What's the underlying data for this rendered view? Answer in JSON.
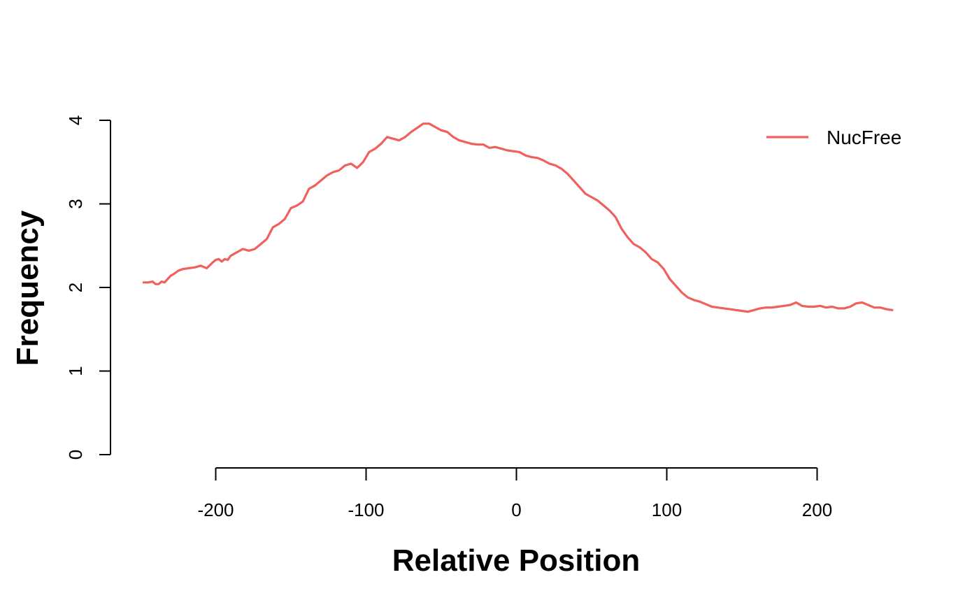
{
  "chart_data": {
    "type": "line",
    "title": "",
    "xlabel": "Relative Position",
    "ylabel": "Frequency",
    "xlim": [
      -250,
      250
    ],
    "ylim": [
      0,
      4
    ],
    "x_ticks": [
      -200,
      -100,
      0,
      100,
      200
    ],
    "x_tick_labels": [
      "-200",
      "-100",
      "0",
      "100",
      "200"
    ],
    "y_ticks": [
      0,
      1,
      2,
      3,
      4
    ],
    "y_tick_labels": [
      "0",
      "1",
      "2",
      "3",
      "4"
    ],
    "grid": false,
    "legend": {
      "position": "top-right",
      "entries": [
        "NucFree"
      ]
    },
    "series": [
      {
        "name": "NucFree",
        "color": "#F0605C",
        "x": [
          -248,
          -245,
          -242,
          -240,
          -238,
          -236,
          -234,
          -232,
          -230,
          -228,
          -225,
          -222,
          -218,
          -214,
          -210,
          -206,
          -202,
          -200,
          -198,
          -196,
          -194,
          -192,
          -190,
          -186,
          -182,
          -178,
          -174,
          -170,
          -166,
          -162,
          -158,
          -154,
          -150,
          -146,
          -142,
          -138,
          -134,
          -130,
          -126,
          -122,
          -118,
          -114,
          -110,
          -106,
          -102,
          -98,
          -94,
          -90,
          -86,
          -82,
          -78,
          -74,
          -70,
          -66,
          -62,
          -58,
          -54,
          -50,
          -46,
          -42,
          -38,
          -34,
          -30,
          -26,
          -22,
          -18,
          -14,
          -10,
          -6,
          -2,
          2,
          6,
          10,
          14,
          18,
          22,
          26,
          30,
          34,
          38,
          42,
          46,
          50,
          54,
          58,
          62,
          66,
          70,
          74,
          78,
          82,
          86,
          90,
          94,
          98,
          102,
          106,
          110,
          114,
          118,
          122,
          126,
          130,
          134,
          138,
          142,
          146,
          150,
          154,
          158,
          162,
          166,
          170,
          174,
          178,
          182,
          186,
          190,
          194,
          198,
          202,
          206,
          210,
          214,
          218,
          222,
          226,
          230,
          234,
          238,
          242,
          246,
          250
        ],
        "values": [
          2.06,
          2.06,
          2.07,
          2.04,
          2.04,
          2.07,
          2.06,
          2.1,
          2.14,
          2.16,
          2.2,
          2.22,
          2.23,
          2.24,
          2.26,
          2.23,
          2.3,
          2.33,
          2.34,
          2.31,
          2.34,
          2.33,
          2.38,
          2.42,
          2.46,
          2.44,
          2.46,
          2.52,
          2.58,
          2.72,
          2.76,
          2.82,
          2.95,
          2.98,
          3.03,
          3.18,
          3.22,
          3.28,
          3.34,
          3.38,
          3.4,
          3.46,
          3.48,
          3.43,
          3.5,
          3.62,
          3.66,
          3.72,
          3.8,
          3.78,
          3.76,
          3.8,
          3.86,
          3.91,
          3.96,
          3.96,
          3.92,
          3.88,
          3.86,
          3.8,
          3.76,
          3.74,
          3.72,
          3.71,
          3.71,
          3.67,
          3.68,
          3.66,
          3.64,
          3.63,
          3.62,
          3.58,
          3.56,
          3.55,
          3.52,
          3.48,
          3.46,
          3.42,
          3.36,
          3.28,
          3.2,
          3.12,
          3.08,
          3.04,
          2.98,
          2.92,
          2.84,
          2.7,
          2.6,
          2.52,
          2.48,
          2.42,
          2.34,
          2.3,
          2.22,
          2.1,
          2.02,
          1.94,
          1.88,
          1.85,
          1.83,
          1.8,
          1.77,
          1.76,
          1.75,
          1.74,
          1.73,
          1.72,
          1.71,
          1.73,
          1.75,
          1.76,
          1.76,
          1.77,
          1.78,
          1.79,
          1.82,
          1.78,
          1.77,
          1.77,
          1.78,
          1.76,
          1.77,
          1.75,
          1.75,
          1.77,
          1.81,
          1.82,
          1.79,
          1.76,
          1.76,
          1.74,
          1.73
        ]
      }
    ]
  }
}
